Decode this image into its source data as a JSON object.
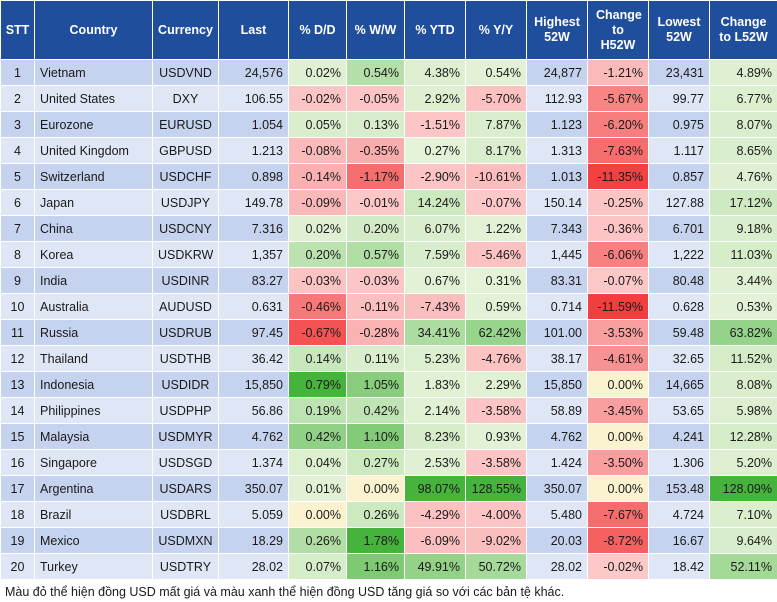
{
  "headers": [
    "STT",
    "Country",
    "Currency",
    "Last",
    "% D/D",
    "% W/W",
    "% YTD",
    "% Y/Y",
    "Highest 52W",
    "Change to H52W",
    "Lowest 52W",
    "Change to L52W"
  ],
  "rows": [
    {
      "stt": "1",
      "country": "Vietnam",
      "currency": "USDVND",
      "last": "24,576",
      "dd": "0.02%",
      "ww": "0.54%",
      "ytd": "4.38%",
      "yy": "0.54%",
      "high": "24,877",
      "chh": "-1.21%",
      "low": "23,431",
      "chl": "4.89%"
    },
    {
      "stt": "2",
      "country": "United States",
      "currency": "DXY",
      "last": "106.55",
      "dd": "-0.02%",
      "ww": "-0.05%",
      "ytd": "2.92%",
      "yy": "-5.70%",
      "high": "112.93",
      "chh": "-5.67%",
      "low": "99.77",
      "chl": "6.77%"
    },
    {
      "stt": "3",
      "country": "Eurozone",
      "currency": "EURUSD",
      "last": "1.054",
      "dd": "0.05%",
      "ww": "0.13%",
      "ytd": "-1.51%",
      "yy": "7.87%",
      "high": "1.123",
      "chh": "-6.20%",
      "low": "0.975",
      "chl": "8.07%"
    },
    {
      "stt": "4",
      "country": "United Kingdom",
      "currency": "GBPUSD",
      "last": "1.213",
      "dd": "-0.08%",
      "ww": "-0.35%",
      "ytd": "0.27%",
      "yy": "8.17%",
      "high": "1.313",
      "chh": "-7.63%",
      "low": "1.117",
      "chl": "8.65%"
    },
    {
      "stt": "5",
      "country": "Switzerland",
      "currency": "USDCHF",
      "last": "0.898",
      "dd": "-0.14%",
      "ww": "-1.17%",
      "ytd": "-2.90%",
      "yy": "-10.61%",
      "high": "1.013",
      "chh": "-11.35%",
      "low": "0.857",
      "chl": "4.76%"
    },
    {
      "stt": "6",
      "country": "Japan",
      "currency": "USDJPY",
      "last": "149.78",
      "dd": "-0.09%",
      "ww": "-0.01%",
      "ytd": "14.24%",
      "yy": "-0.07%",
      "high": "150.14",
      "chh": "-0.25%",
      "low": "127.88",
      "chl": "17.12%"
    },
    {
      "stt": "7",
      "country": "China",
      "currency": "USDCNY",
      "last": "7.316",
      "dd": "0.02%",
      "ww": "0.20%",
      "ytd": "6.07%",
      "yy": "1.22%",
      "high": "7.343",
      "chh": "-0.36%",
      "low": "6.701",
      "chl": "9.18%"
    },
    {
      "stt": "8",
      "country": "Korea",
      "currency": "USDKRW",
      "last": "1,357",
      "dd": "0.20%",
      "ww": "0.57%",
      "ytd": "7.59%",
      "yy": "-5.46%",
      "high": "1,445",
      "chh": "-6.06%",
      "low": "1,222",
      "chl": "11.03%"
    },
    {
      "stt": "9",
      "country": "India",
      "currency": "USDINR",
      "last": "83.27",
      "dd": "-0.03%",
      "ww": "-0.03%",
      "ytd": "0.67%",
      "yy": "0.31%",
      "high": "83.31",
      "chh": "-0.07%",
      "low": "80.48",
      "chl": "3.44%"
    },
    {
      "stt": "10",
      "country": "Australia",
      "currency": "AUDUSD",
      "last": "0.631",
      "dd": "-0.46%",
      "ww": "-0.11%",
      "ytd": "-7.43%",
      "yy": "0.59%",
      "high": "0.714",
      "chh": "-11.59%",
      "low": "0.628",
      "chl": "0.53%"
    },
    {
      "stt": "11",
      "country": "Russia",
      "currency": "USDRUB",
      "last": "97.45",
      "dd": "-0.67%",
      "ww": "-0.28%",
      "ytd": "34.41%",
      "yy": "62.42%",
      "high": "101.00",
      "chh": "-3.53%",
      "low": "59.48",
      "chl": "63.82%"
    },
    {
      "stt": "12",
      "country": "Thailand",
      "currency": "USDTHB",
      "last": "36.42",
      "dd": "0.14%",
      "ww": "0.11%",
      "ytd": "5.23%",
      "yy": "-4.76%",
      "high": "38.17",
      "chh": "-4.61%",
      "low": "32.65",
      "chl": "11.52%"
    },
    {
      "stt": "13",
      "country": "Indonesia",
      "currency": "USDIDR",
      "last": "15,850",
      "dd": "0.79%",
      "ww": "1.05%",
      "ytd": "1.83%",
      "yy": "2.29%",
      "high": "15,850",
      "chh": "0.00%",
      "low": "14,665",
      "chl": "8.08%"
    },
    {
      "stt": "14",
      "country": "Philippines",
      "currency": "USDPHP",
      "last": "56.86",
      "dd": "0.19%",
      "ww": "0.42%",
      "ytd": "2.14%",
      "yy": "-3.58%",
      "high": "58.89",
      "chh": "-3.45%",
      "low": "53.65",
      "chl": "5.98%"
    },
    {
      "stt": "15",
      "country": "Malaysia",
      "currency": "USDMYR",
      "last": "4.762",
      "dd": "0.42%",
      "ww": "1.10%",
      "ytd": "8.23%",
      "yy": "0.93%",
      "high": "4.762",
      "chh": "0.00%",
      "low": "4.241",
      "chl": "12.28%"
    },
    {
      "stt": "16",
      "country": "Singapore",
      "currency": "USDSGD",
      "last": "1.374",
      "dd": "0.04%",
      "ww": "0.27%",
      "ytd": "2.53%",
      "yy": "-3.58%",
      "high": "1.424",
      "chh": "-3.50%",
      "low": "1.306",
      "chl": "5.20%"
    },
    {
      "stt": "17",
      "country": "Argentina",
      "currency": "USDARS",
      "last": "350.07",
      "dd": "0.01%",
      "ww": "0.00%",
      "ytd": "98.07%",
      "yy": "128.55%",
      "high": "350.07",
      "chh": "0.00%",
      "low": "153.48",
      "chl": "128.09%"
    },
    {
      "stt": "18",
      "country": "Brazil",
      "currency": "USDBRL",
      "last": "5.059",
      "dd": "0.00%",
      "ww": "0.26%",
      "ytd": "-4.29%",
      "yy": "-4.00%",
      "high": "5.480",
      "chh": "-7.67%",
      "low": "4.724",
      "chl": "7.10%"
    },
    {
      "stt": "19",
      "country": "Mexico",
      "currency": "USDMXN",
      "last": "18.29",
      "dd": "0.26%",
      "ww": "1.78%",
      "ytd": "-6.09%",
      "yy": "-9.02%",
      "high": "20.03",
      "chh": "-8.72%",
      "low": "16.67",
      "chl": "9.64%"
    },
    {
      "stt": "20",
      "country": "Turkey",
      "currency": "USDTRY",
      "last": "28.02",
      "dd": "0.07%",
      "ww": "1.16%",
      "ytd": "49.91%",
      "yy": "50.72%",
      "high": "28.02",
      "chh": "-0.02%",
      "low": "18.42",
      "chl": "52.11%"
    }
  ],
  "footnote": "Màu đỏ thể hiện đồng USD mất giá và màu xanh thể hiện đồng USD tăng giá so với các bản tệ khác."
}
